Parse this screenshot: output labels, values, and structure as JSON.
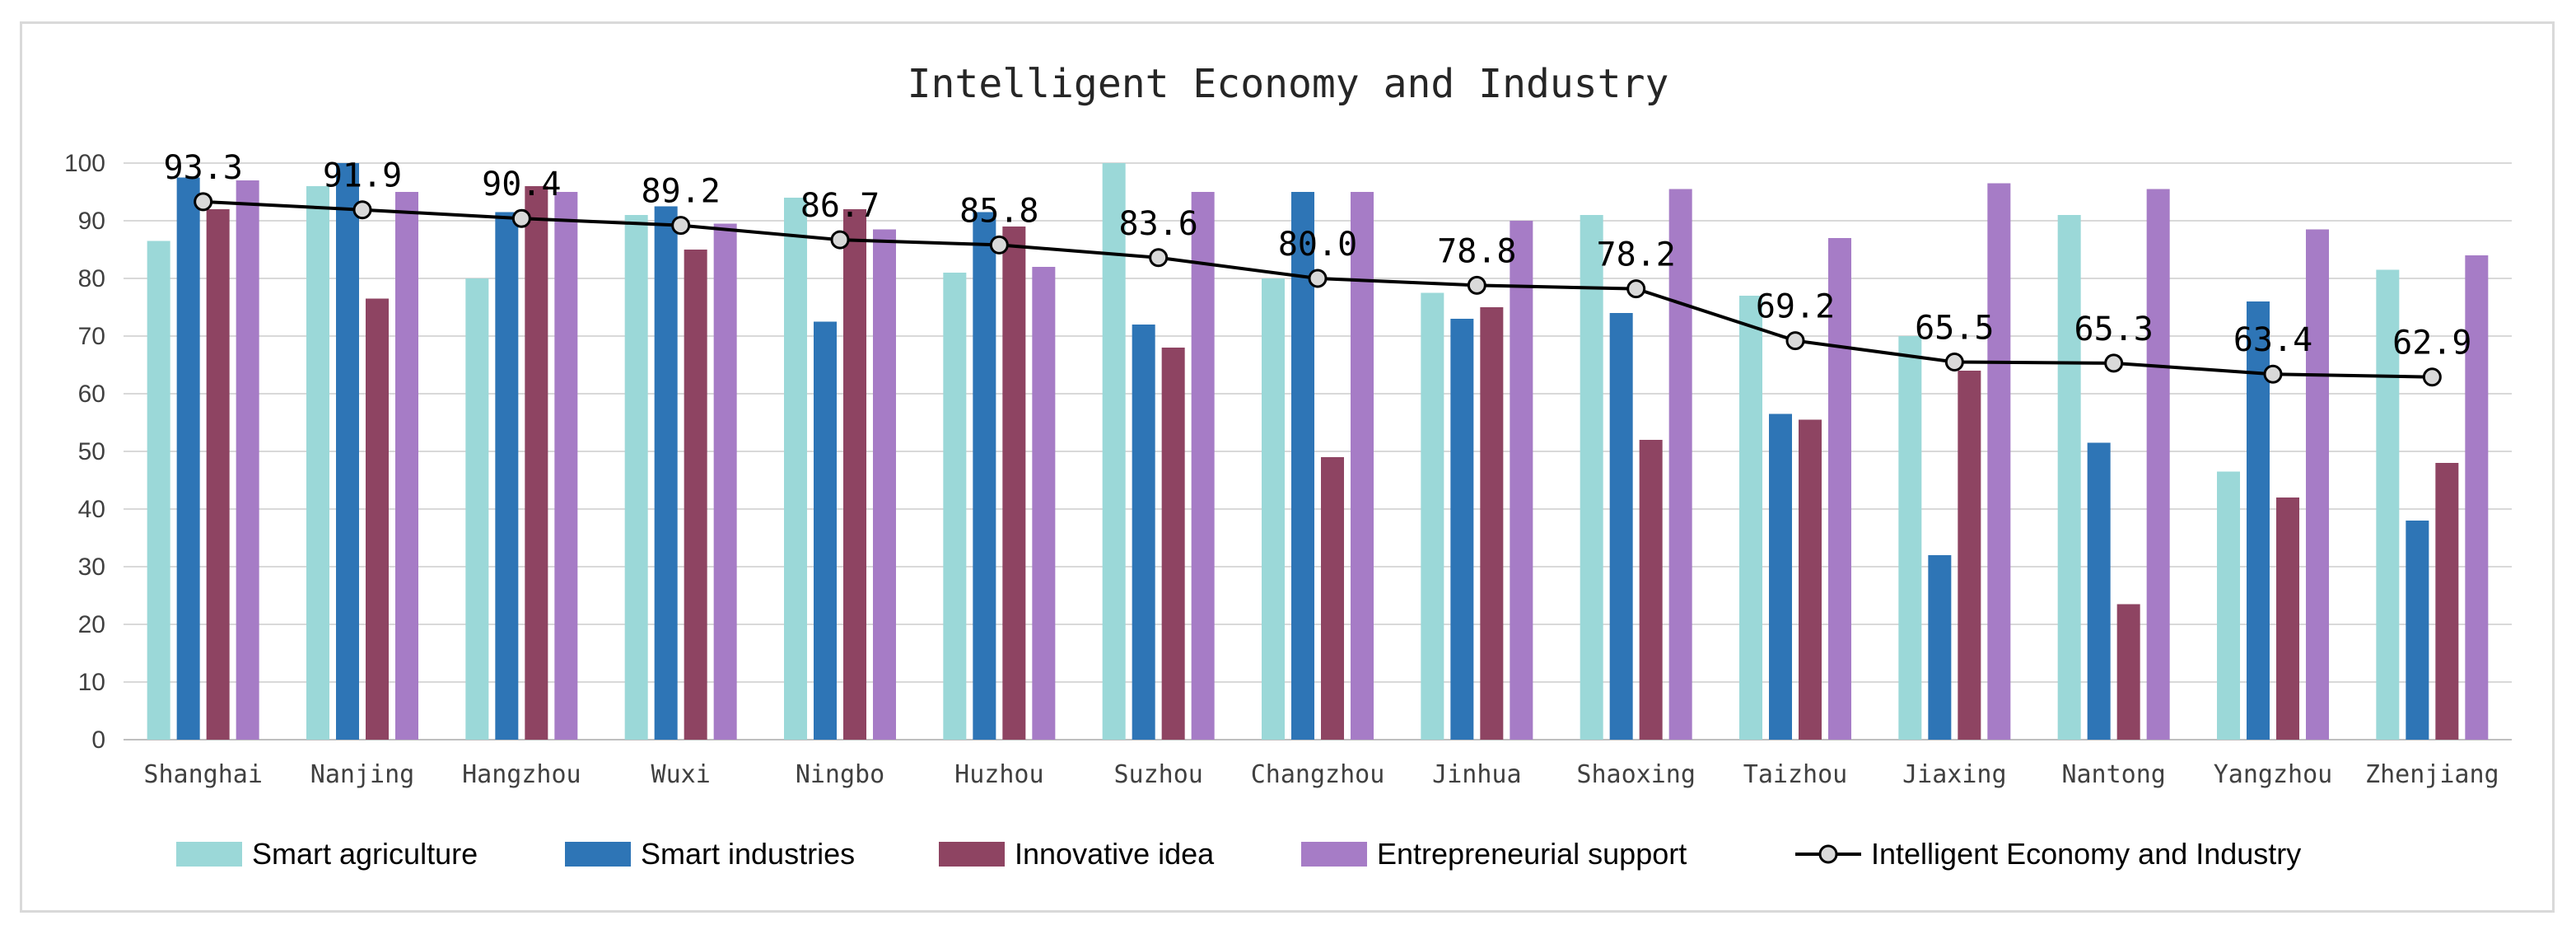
{
  "chart_data": {
    "type": "bar",
    "title": "Intelligent Economy and Industry",
    "categories": [
      "Shanghai",
      "Nanjing",
      "Hangzhou",
      "Wuxi",
      "Ningbo",
      "Huzhou",
      "Suzhou",
      "Changzhou",
      "Jinhua",
      "Shaoxing",
      "Taizhou",
      "Jiaxing",
      "Nantong",
      "Yangzhou",
      "Zhenjiang"
    ],
    "ylim": [
      0,
      100
    ],
    "yticks": [
      0,
      10,
      20,
      30,
      40,
      50,
      60,
      70,
      80,
      90,
      100
    ],
    "grid": true,
    "legend_position": "bottom",
    "series": [
      {
        "name": "Smart agriculture",
        "type": "bar",
        "color": "#9bd8d8",
        "values": [
          86.5,
          96,
          80,
          91,
          94,
          81,
          100,
          80,
          77.5,
          91,
          77,
          70,
          91,
          46.5,
          81.5
        ]
      },
      {
        "name": "Smart industries",
        "type": "bar",
        "color": "#2e75b6",
        "values": [
          97.5,
          100,
          91.5,
          92.5,
          72.5,
          91.5,
          72,
          95,
          73,
          74,
          56.5,
          32,
          51.5,
          76,
          38
        ]
      },
      {
        "name": "Innovative idea",
        "type": "bar",
        "color": "#8e4462",
        "values": [
          92,
          76.5,
          96,
          85,
          92,
          89,
          68,
          49,
          75,
          52,
          55.5,
          64,
          23.5,
          42,
          48
        ]
      },
      {
        "name": "Entrepreneurial support",
        "type": "bar",
        "color": "#a67cc6",
        "values": [
          97,
          95,
          95,
          89.5,
          88.5,
          82,
          95,
          95,
          90,
          95.5,
          87,
          96.5,
          95.5,
          88.5,
          84
        ]
      },
      {
        "name": "Intelligent Economy and Industry",
        "type": "line",
        "color": "#000000",
        "marker_fill": "#d9d9d9",
        "values": [
          93.3,
          91.9,
          90.4,
          89.2,
          86.7,
          85.8,
          83.6,
          80.0,
          78.8,
          78.2,
          69.2,
          65.5,
          65.3,
          63.4,
          62.9
        ],
        "labels": [
          "93.3",
          "91.9",
          "90.4",
          "89.2",
          "86.7",
          "85.8",
          "83.6",
          "80.0",
          "78.8",
          "78.2",
          "69.2",
          "65.5",
          "65.3",
          "63.4",
          "62.9"
        ]
      }
    ]
  },
  "colors": {
    "grid": "#d9d9d9",
    "axis": "#bfbfbf",
    "text": "#404040",
    "title": "#262626"
  }
}
